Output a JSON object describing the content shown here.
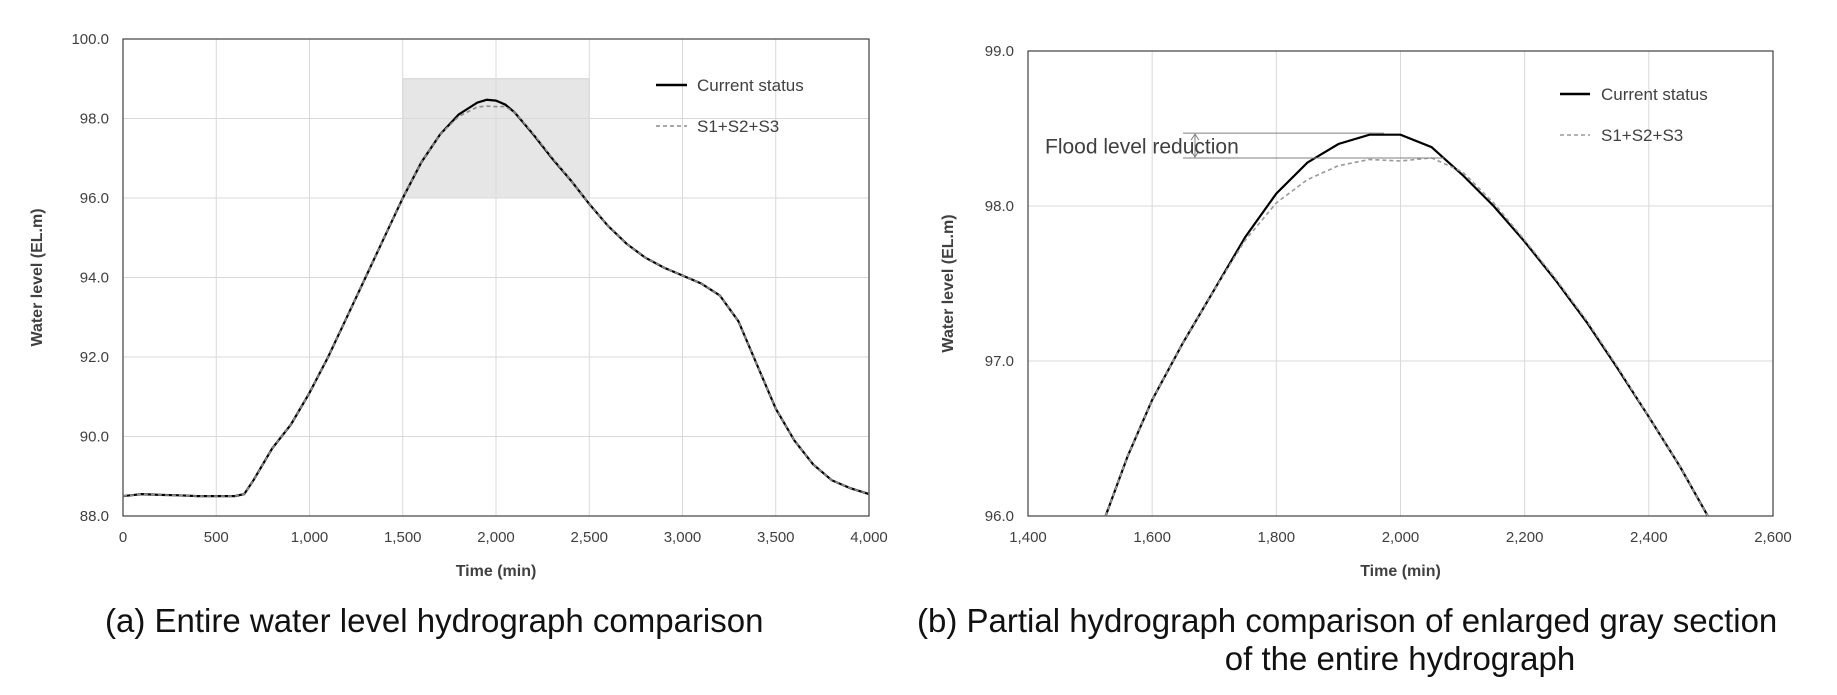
{
  "chart_data": [
    {
      "type": "line",
      "id": "a",
      "caption": "(a) Entire water level hydrograph comparison",
      "xlabel": "Time (min)",
      "ylabel": "Water level (EL.m)",
      "xlim": [
        0,
        4000
      ],
      "ylim": [
        88.0,
        100.0
      ],
      "x_ticks": [
        0,
        500,
        1000,
        1500,
        2000,
        2500,
        3000,
        3500,
        4000
      ],
      "x_tick_labels": [
        "0",
        "500",
        "1,000",
        "1,500",
        "2,000",
        "2,500",
        "3,000",
        "3,500",
        "4,000"
      ],
      "y_ticks": [
        88,
        90,
        92,
        94,
        96,
        98,
        100
      ],
      "y_tick_labels": [
        "88.0",
        "90.0",
        "92.0",
        "94.0",
        "96.0",
        "98.0",
        "100.0"
      ],
      "grid": true,
      "legend_position": "top-right",
      "highlight_region": {
        "x": [
          1500,
          2500
        ],
        "y": [
          96.0,
          99.0
        ],
        "color": "#e6e6e6"
      },
      "series": [
        {
          "name": "Current status",
          "style": "solid",
          "color": "#000000",
          "x": [
            0,
            100,
            200,
            300,
            400,
            500,
            600,
            650,
            700,
            800,
            900,
            1000,
            1100,
            1200,
            1300,
            1400,
            1500,
            1600,
            1700,
            1800,
            1900,
            1950,
            2000,
            2050,
            2100,
            2200,
            2300,
            2400,
            2500,
            2600,
            2700,
            2800,
            2900,
            3000,
            3100,
            3200,
            3300,
            3400,
            3500,
            3600,
            3700,
            3800,
            3900,
            4000
          ],
          "y": [
            88.5,
            88.55,
            88.53,
            88.52,
            88.5,
            88.5,
            88.5,
            88.55,
            88.9,
            89.7,
            90.3,
            91.1,
            92.0,
            93.0,
            94.0,
            95.0,
            96.0,
            96.9,
            97.6,
            98.1,
            98.4,
            98.47,
            98.45,
            98.35,
            98.15,
            97.6,
            97.0,
            96.45,
            95.85,
            95.3,
            94.85,
            94.5,
            94.25,
            94.05,
            93.85,
            93.55,
            92.9,
            91.8,
            90.7,
            89.9,
            89.3,
            88.9,
            88.7,
            88.55
          ]
        },
        {
          "name": "S1+S2+S3",
          "style": "dashed",
          "color": "#8c8c8c",
          "x": [
            0,
            100,
            200,
            300,
            400,
            500,
            600,
            650,
            700,
            800,
            900,
            1000,
            1100,
            1200,
            1300,
            1400,
            1500,
            1600,
            1700,
            1800,
            1900,
            1950,
            2000,
            2050,
            2100,
            2200,
            2300,
            2400,
            2500,
            2600,
            2700,
            2800,
            2900,
            3000,
            3100,
            3200,
            3300,
            3400,
            3500,
            3600,
            3700,
            3800,
            3900,
            4000
          ],
          "y": [
            88.5,
            88.55,
            88.53,
            88.52,
            88.5,
            88.5,
            88.5,
            88.55,
            88.9,
            89.7,
            90.3,
            91.1,
            92.0,
            93.0,
            94.0,
            95.0,
            96.0,
            96.9,
            97.6,
            98.05,
            98.29,
            98.31,
            98.3,
            98.3,
            98.15,
            97.62,
            97.02,
            96.45,
            95.85,
            95.3,
            94.85,
            94.5,
            94.25,
            94.05,
            93.85,
            93.55,
            92.9,
            91.8,
            90.7,
            89.9,
            89.3,
            88.9,
            88.7,
            88.55
          ]
        }
      ]
    },
    {
      "type": "line",
      "id": "b",
      "caption_line1": "(b) Partial hydrograph comparison of enlarged gray section",
      "caption_line2": "of the entire hydrograph",
      "xlabel": "Time (min)",
      "ylabel": "Water level (EL.m)",
      "xlim": [
        1400,
        2600
      ],
      "ylim": [
        96.0,
        99.0
      ],
      "x_ticks": [
        1400,
        1600,
        1800,
        2000,
        2200,
        2400,
        2600
      ],
      "x_tick_labels": [
        "1,400",
        "1,600",
        "1,800",
        "2,000",
        "2,200",
        "2,400",
        "2,600"
      ],
      "y_ticks": [
        96,
        97,
        98,
        99
      ],
      "y_tick_labels": [
        "96.0",
        "97.0",
        "98.0",
        "99.0"
      ],
      "grid": true,
      "legend_position": "top-right",
      "annotation": {
        "text": "Flood level reduction",
        "x_range": [
          1850,
          2070
        ],
        "y_top": 98.47,
        "y_bottom": 98.31
      },
      "series": [
        {
          "name": "Current status",
          "style": "solid",
          "color": "#000000",
          "x": [
            1525,
            1560,
            1600,
            1650,
            1700,
            1750,
            1800,
            1850,
            1900,
            1950,
            2000,
            2050,
            2100,
            2150,
            2200,
            2250,
            2300,
            2350,
            2400,
            2450,
            2495
          ],
          "y": [
            96.0,
            96.38,
            96.75,
            97.12,
            97.46,
            97.8,
            98.08,
            98.28,
            98.4,
            98.46,
            98.46,
            98.38,
            98.2,
            98.0,
            97.77,
            97.52,
            97.25,
            96.95,
            96.64,
            96.32,
            96.0
          ]
        },
        {
          "name": "S1+S2+S3",
          "style": "dashed",
          "color": "#9a9a9a",
          "x": [
            1525,
            1560,
            1600,
            1650,
            1700,
            1750,
            1800,
            1850,
            1900,
            1950,
            2000,
            2050,
            2100,
            2150,
            2200,
            2250,
            2300,
            2350,
            2400,
            2450,
            2495
          ],
          "y": [
            96.0,
            96.38,
            96.75,
            97.12,
            97.46,
            97.78,
            98.02,
            98.17,
            98.26,
            98.3,
            98.29,
            98.31,
            98.22,
            98.02,
            97.78,
            97.53,
            97.26,
            96.96,
            96.64,
            96.32,
            96.0
          ]
        }
      ]
    }
  ]
}
